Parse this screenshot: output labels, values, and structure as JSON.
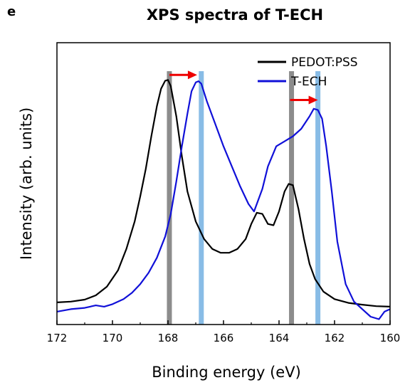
{
  "chart_data": {
    "type": "line",
    "panel_label": "e",
    "title": "XPS spectra of T-ECH",
    "xlabel": "Binding energy (eV)",
    "ylabel": "Intensity (arb. units)",
    "xlim": [
      172,
      160
    ],
    "ylim": [
      0,
      1
    ],
    "x_reversed": true,
    "y_ticks_shown": false,
    "x_ticks": [
      "172",
      "170",
      "168",
      "166",
      "164",
      "162",
      "160"
    ],
    "grid": false,
    "legend_position": "top-right",
    "series": [
      {
        "name": "PEDOT:PSS",
        "color": "#000000",
        "points": [
          [
            172.0,
            0.077
          ],
          [
            171.5,
            0.08
          ],
          [
            171.0,
            0.088
          ],
          [
            170.6,
            0.105
          ],
          [
            170.2,
            0.14
          ],
          [
            169.8,
            0.205
          ],
          [
            169.5,
            0.29
          ],
          [
            169.2,
            0.4
          ],
          [
            169.0,
            0.5
          ],
          [
            168.8,
            0.61
          ],
          [
            168.6,
            0.74
          ],
          [
            168.4,
            0.86
          ],
          [
            168.25,
            0.93
          ],
          [
            168.1,
            0.962
          ],
          [
            168.0,
            0.965
          ],
          [
            167.9,
            0.94
          ],
          [
            167.7,
            0.82
          ],
          [
            167.5,
            0.66
          ],
          [
            167.3,
            0.52
          ],
          [
            167.0,
            0.4
          ],
          [
            166.7,
            0.33
          ],
          [
            166.4,
            0.29
          ],
          [
            166.1,
            0.275
          ],
          [
            165.8,
            0.275
          ],
          [
            165.5,
            0.29
          ],
          [
            165.2,
            0.33
          ],
          [
            165.0,
            0.39
          ],
          [
            164.8,
            0.435
          ],
          [
            164.6,
            0.43
          ],
          [
            164.4,
            0.39
          ],
          [
            164.2,
            0.385
          ],
          [
            164.0,
            0.44
          ],
          [
            163.8,
            0.52
          ],
          [
            163.65,
            0.55
          ],
          [
            163.5,
            0.545
          ],
          [
            163.3,
            0.45
          ],
          [
            163.1,
            0.33
          ],
          [
            162.9,
            0.23
          ],
          [
            162.7,
            0.17
          ],
          [
            162.4,
            0.12
          ],
          [
            162.0,
            0.09
          ],
          [
            161.5,
            0.075
          ],
          [
            161.0,
            0.068
          ],
          [
            160.5,
            0.062
          ],
          [
            160.0,
            0.06
          ]
        ]
      },
      {
        "name": "T-ECH",
        "color": "#1010d8",
        "points": [
          [
            172.0,
            0.04
          ],
          [
            171.5,
            0.05
          ],
          [
            171.0,
            0.055
          ],
          [
            170.6,
            0.065
          ],
          [
            170.3,
            0.06
          ],
          [
            170.0,
            0.07
          ],
          [
            169.6,
            0.09
          ],
          [
            169.3,
            0.115
          ],
          [
            169.0,
            0.15
          ],
          [
            168.7,
            0.195
          ],
          [
            168.4,
            0.255
          ],
          [
            168.1,
            0.34
          ],
          [
            167.9,
            0.43
          ],
          [
            167.7,
            0.56
          ],
          [
            167.5,
            0.7
          ],
          [
            167.3,
            0.83
          ],
          [
            167.15,
            0.92
          ],
          [
            167.0,
            0.955
          ],
          [
            166.9,
            0.96
          ],
          [
            166.8,
            0.95
          ],
          [
            166.6,
            0.88
          ],
          [
            166.3,
            0.79
          ],
          [
            166.0,
            0.7
          ],
          [
            165.7,
            0.62
          ],
          [
            165.4,
            0.54
          ],
          [
            165.1,
            0.47
          ],
          [
            164.9,
            0.44
          ],
          [
            164.6,
            0.53
          ],
          [
            164.4,
            0.62
          ],
          [
            164.1,
            0.7
          ],
          [
            163.8,
            0.72
          ],
          [
            163.5,
            0.74
          ],
          [
            163.2,
            0.77
          ],
          [
            162.9,
            0.82
          ],
          [
            162.75,
            0.85
          ],
          [
            162.6,
            0.845
          ],
          [
            162.45,
            0.81
          ],
          [
            162.3,
            0.7
          ],
          [
            162.1,
            0.52
          ],
          [
            161.9,
            0.32
          ],
          [
            161.6,
            0.15
          ],
          [
            161.3,
            0.08
          ],
          [
            161.0,
            0.05
          ],
          [
            160.7,
            0.02
          ],
          [
            160.4,
            0.01
          ],
          [
            160.2,
            0.04
          ],
          [
            160.0,
            0.05
          ]
        ]
      }
    ],
    "peak_markers": [
      {
        "x": 167.95,
        "color": "#8c8c8c"
      },
      {
        "x": 166.8,
        "color": "#88bce6"
      },
      {
        "x": 163.55,
        "color": "#8c8c8c"
      },
      {
        "x": 162.6,
        "color": "#88bce6"
      }
    ],
    "shift_arrows": [
      {
        "from_x": 167.95,
        "to_x": 166.95,
        "y": 0.985,
        "color": "#ee0000"
      },
      {
        "from_x": 163.6,
        "to_x": 162.6,
        "y": 0.885,
        "color": "#ee0000"
      }
    ]
  }
}
